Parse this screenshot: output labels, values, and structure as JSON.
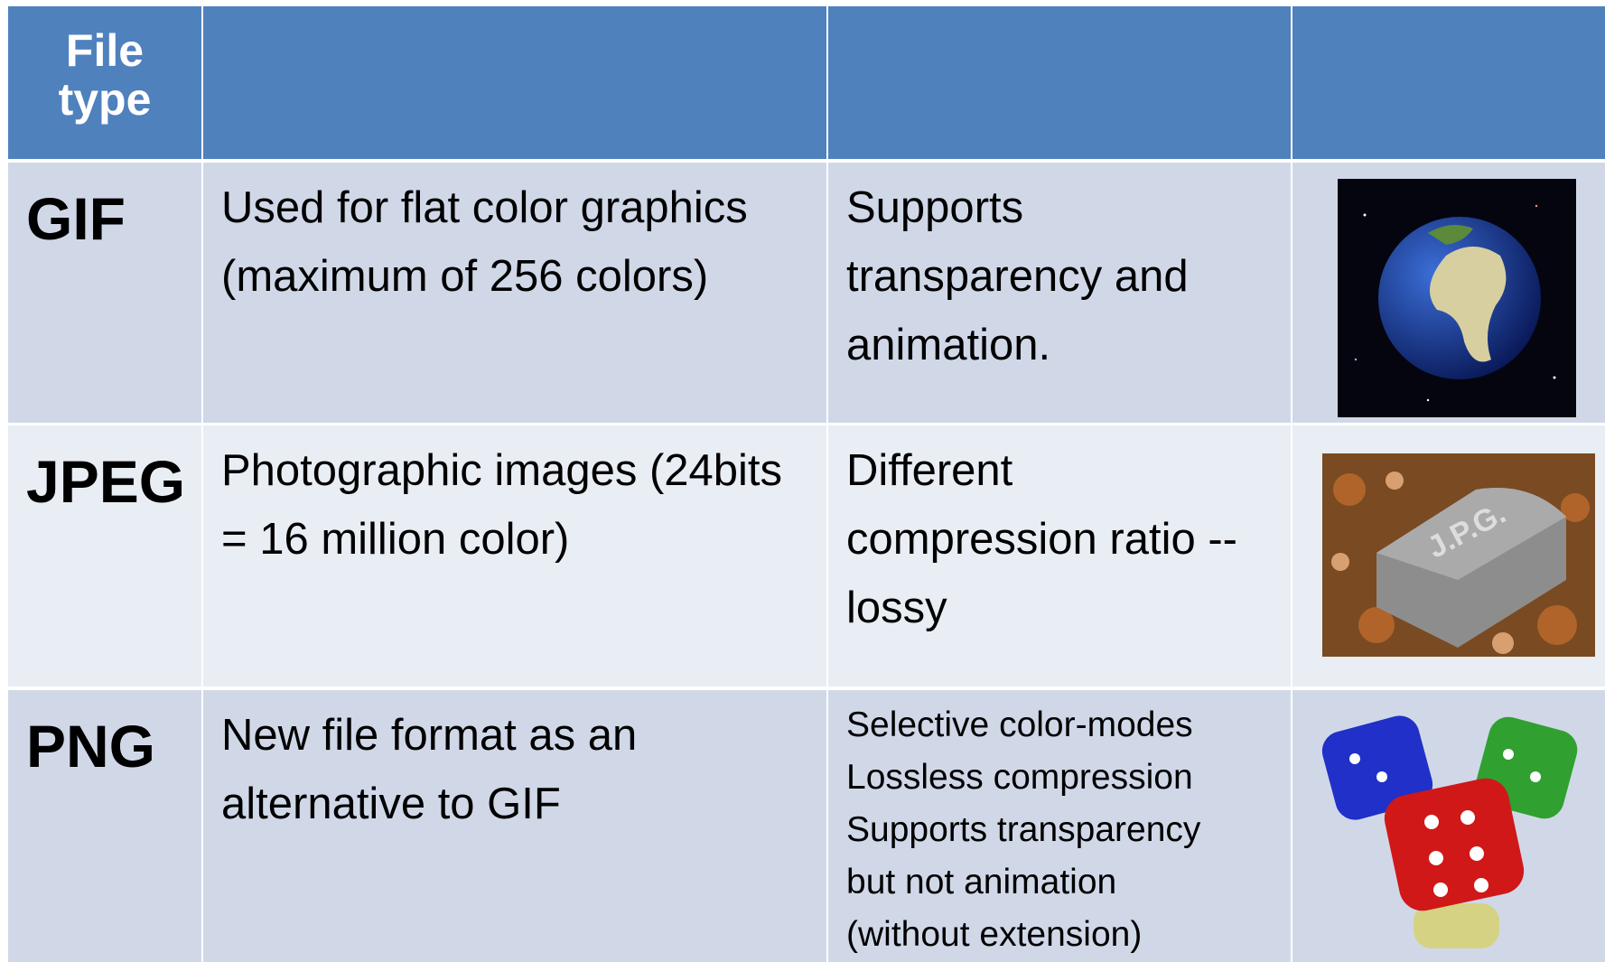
{
  "table": {
    "header": {
      "title": "File type"
    },
    "rows": [
      {
        "type": "GIF",
        "description": "Used for flat color graphics (maximum of 256 colors)",
        "features": [
          "Supports transparency and animation."
        ]
      },
      {
        "type": "JPEG",
        "description": "Photographic images (24bits = 16 million color)",
        "features": [
          "Different compression ratio -- lossy"
        ],
        "image_text": "J.P.G."
      },
      {
        "type": "PNG",
        "description": "New file format as an alternative to GIF",
        "features": [
          "Selective color-modes",
          "Lossless compression",
          "Supports transparency",
          "but not animation",
          "(without extension)"
        ]
      }
    ]
  }
}
